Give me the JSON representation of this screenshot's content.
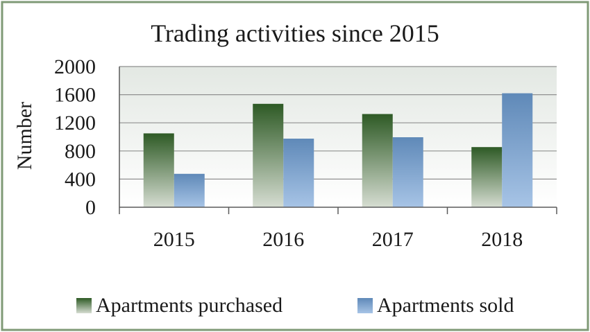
{
  "colors": {
    "border": "#7f9a76",
    "plot_bg_top": "#e3e8e3",
    "plot_bg_bottom": "#ffffff",
    "gridline": "#8f8f8f",
    "axis": "#5a5a5a",
    "text": "#1a1a1a",
    "purchased_top": "#2e5a25",
    "purchased_bottom": "#d6ddd2",
    "sold_top": "#5f89b8",
    "sold_bottom": "#a7c4e6"
  },
  "chart_data": {
    "type": "bar",
    "title": "Trading activities since 2015",
    "xlabel": "",
    "ylabel": "Number",
    "categories": [
      "2015",
      "2016",
      "2017",
      "2018"
    ],
    "series": [
      {
        "name": "Apartments purchased",
        "values": [
          1050,
          1470,
          1325,
          855
        ]
      },
      {
        "name": "Apartments sold",
        "values": [
          475,
          975,
          995,
          1620
        ]
      }
    ],
    "ylim": [
      0,
      2000
    ],
    "yticks": [
      "0",
      "400",
      "800",
      "1200",
      "1600",
      "2000"
    ],
    "grid": true,
    "legend": "bottom"
  }
}
